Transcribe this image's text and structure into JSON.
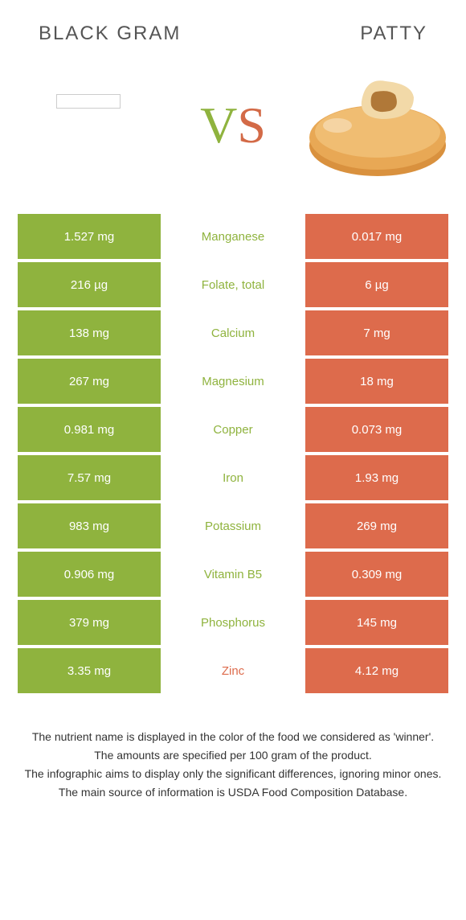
{
  "colors": {
    "left": "#8fb33e",
    "right": "#dd6b4c",
    "text_left": "#8fb33e",
    "text_right": "#dd6b4c",
    "header_text": "#555555",
    "footer_text": "#333333",
    "bg": "#ffffff"
  },
  "header": {
    "left_title": "BLACK GRAM",
    "right_title": "PATTY"
  },
  "vs": {
    "v": "V",
    "s": "S"
  },
  "rows": [
    {
      "left": "1.527 mg",
      "label": "Manganese",
      "right": "0.017 mg",
      "winner": "left"
    },
    {
      "left": "216 µg",
      "label": "Folate, total",
      "right": "6 µg",
      "winner": "left"
    },
    {
      "left": "138 mg",
      "label": "Calcium",
      "right": "7 mg",
      "winner": "left"
    },
    {
      "left": "267 mg",
      "label": "Magnesium",
      "right": "18 mg",
      "winner": "left"
    },
    {
      "left": "0.981 mg",
      "label": "Copper",
      "right": "0.073 mg",
      "winner": "left"
    },
    {
      "left": "7.57 mg",
      "label": "Iron",
      "right": "1.93 mg",
      "winner": "left"
    },
    {
      "left": "983 mg",
      "label": "Potassium",
      "right": "269 mg",
      "winner": "left"
    },
    {
      "left": "0.906 mg",
      "label": "Vitamin B5",
      "right": "0.309 mg",
      "winner": "left"
    },
    {
      "left": "379 mg",
      "label": "Phosphorus",
      "right": "145 mg",
      "winner": "left"
    },
    {
      "left": "3.35 mg",
      "label": "Zinc",
      "right": "4.12 mg",
      "winner": "right"
    }
  ],
  "footer": {
    "line1": "The nutrient name is displayed in the color of the food we considered as 'winner'.",
    "line2": "The amounts are specified per 100 gram of the product.",
    "line3": "The infographic aims to display only the significant differences, ignoring minor ones.",
    "line4": "The main source of information is USDA Food Composition Database."
  }
}
